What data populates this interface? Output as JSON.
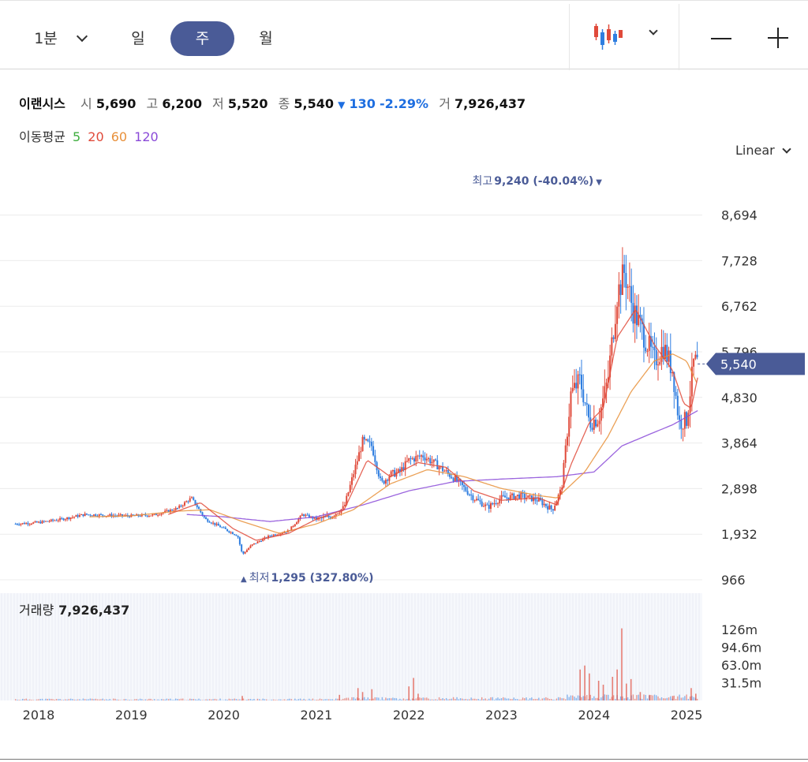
{
  "toolbar": {
    "interval_minute": "1분",
    "interval_day": "일",
    "interval_week": "주",
    "interval_month": "월",
    "active_interval": "주",
    "chart_type_icon": "candlestick-icon",
    "zoom_out_icon": "minus-icon",
    "zoom_in_icon": "plus-icon"
  },
  "stock": {
    "name": "이랜시스",
    "open_label": "시",
    "open": "5,690",
    "high_label": "고",
    "high": "6,200",
    "low_label": "저",
    "low": "5,520",
    "close_label": "종",
    "close": "5,540",
    "change": "130",
    "change_pct": "-2.29%",
    "volume_label": "거",
    "volume": "7,926,437"
  },
  "moving_average": {
    "label": "이동평균",
    "periods": [
      {
        "value": "5",
        "color": "#3fae3f"
      },
      {
        "value": "20",
        "color": "#e04a3a"
      },
      {
        "value": "60",
        "color": "#e8903a"
      },
      {
        "value": "120",
        "color": "#8a4ad8"
      }
    ]
  },
  "scale_mode": "Linear",
  "colors": {
    "up": "#e04a3a",
    "down": "#2f7ee0",
    "accent": "#4a5b97",
    "ma5": "#3fae3f",
    "ma20": "#e04a3a",
    "ma60": "#e8903a",
    "ma120": "#8a4ad8"
  },
  "chart_data": {
    "type": "candlestick",
    "x_labels": [
      "2018",
      "2019",
      "2020",
      "2021",
      "2022",
      "2023",
      "2024",
      "2025"
    ],
    "y_ticks": [
      "8,694",
      "7,728",
      "6,762",
      "5,796",
      "4,830",
      "3,864",
      "2,898",
      "1,932",
      "966"
    ],
    "ylim": [
      966,
      9240
    ],
    "current_price": "5,540",
    "high_annotation": {
      "label": "최고",
      "value": "9,240",
      "pct": "(-40.04%)"
    },
    "low_annotation": {
      "label": "최저",
      "value": "1,295",
      "pct": "(327.80%)"
    },
    "price_keypoints": [
      [
        2017.75,
        2150
      ],
      [
        2018.0,
        2180
      ],
      [
        2018.25,
        2250
      ],
      [
        2018.5,
        2350
      ],
      [
        2018.75,
        2330
      ],
      [
        2019.0,
        2320
      ],
      [
        2019.25,
        2340
      ],
      [
        2019.5,
        2480
      ],
      [
        2019.65,
        2700
      ],
      [
        2019.8,
        2250
      ],
      [
        2020.0,
        2050
      ],
      [
        2020.15,
        1900
      ],
      [
        2020.2,
        1500
      ],
      [
        2020.3,
        1700
      ],
      [
        2020.5,
        1900
      ],
      [
        2020.7,
        2000
      ],
      [
        2020.85,
        2350
      ],
      [
        2021.0,
        2250
      ],
      [
        2021.15,
        2300
      ],
      [
        2021.3,
        2500
      ],
      [
        2021.4,
        3200
      ],
      [
        2021.5,
        3900
      ],
      [
        2021.6,
        3800
      ],
      [
        2021.7,
        3000
      ],
      [
        2021.8,
        3200
      ],
      [
        2021.9,
        3250
      ],
      [
        2022.0,
        3500
      ],
      [
        2022.15,
        3600
      ],
      [
        2022.3,
        3400
      ],
      [
        2022.5,
        3100
      ],
      [
        2022.7,
        2700
      ],
      [
        2022.85,
        2500
      ],
      [
        2023.0,
        2700
      ],
      [
        2023.2,
        2750
      ],
      [
        2023.4,
        2650
      ],
      [
        2023.55,
        2450
      ],
      [
        2023.65,
        2900
      ],
      [
        2023.75,
        4900
      ],
      [
        2023.85,
        5200
      ],
      [
        2023.95,
        4300
      ],
      [
        2024.05,
        4400
      ],
      [
        2024.15,
        5200
      ],
      [
        2024.25,
        7000
      ],
      [
        2024.33,
        7500
      ],
      [
        2024.42,
        6700
      ],
      [
        2024.55,
        6100
      ],
      [
        2024.65,
        5600
      ],
      [
        2024.75,
        5900
      ],
      [
        2024.85,
        5400
      ],
      [
        2024.92,
        4300
      ],
      [
        2025.0,
        4350
      ],
      [
        2025.08,
        5600
      ],
      [
        2025.12,
        5540
      ]
    ],
    "ma20_keypoints": [
      [
        2019.4,
        2350
      ],
      [
        2019.75,
        2600
      ],
      [
        2020.1,
        2050
      ],
      [
        2020.35,
        1800
      ],
      [
        2020.7,
        1950
      ],
      [
        2021.0,
        2250
      ],
      [
        2021.3,
        2450
      ],
      [
        2021.55,
        3500
      ],
      [
        2021.8,
        3150
      ],
      [
        2022.1,
        3450
      ],
      [
        2022.4,
        3350
      ],
      [
        2022.7,
        2850
      ],
      [
        2023.0,
        2650
      ],
      [
        2023.4,
        2700
      ],
      [
        2023.6,
        2550
      ],
      [
        2023.75,
        3400
      ],
      [
        2023.95,
        4300
      ],
      [
        2024.1,
        4600
      ],
      [
        2024.25,
        6100
      ],
      [
        2024.45,
        6700
      ],
      [
        2024.65,
        5950
      ],
      [
        2024.85,
        5400
      ],
      [
        2024.97,
        4700
      ],
      [
        2025.05,
        4600
      ],
      [
        2025.12,
        5250
      ]
    ],
    "ma60_keypoints": [
      [
        2018.55,
        2300
      ],
      [
        2019.0,
        2320
      ],
      [
        2019.5,
        2420
      ],
      [
        2019.85,
        2450
      ],
      [
        2020.2,
        2200
      ],
      [
        2020.6,
        1950
      ],
      [
        2021.0,
        2150
      ],
      [
        2021.4,
        2450
      ],
      [
        2021.8,
        3000
      ],
      [
        2022.2,
        3300
      ],
      [
        2022.6,
        3150
      ],
      [
        2023.0,
        2900
      ],
      [
        2023.4,
        2750
      ],
      [
        2023.6,
        2700
      ],
      [
        2023.9,
        3250
      ],
      [
        2024.15,
        4000
      ],
      [
        2024.4,
        4950
      ],
      [
        2024.65,
        5600
      ],
      [
        2024.85,
        5750
      ],
      [
        2025.0,
        5600
      ],
      [
        2025.12,
        5100
      ]
    ],
    "ma120_keypoints": [
      [
        2019.6,
        2350
      ],
      [
        2020.0,
        2300
      ],
      [
        2020.5,
        2200
      ],
      [
        2021.0,
        2300
      ],
      [
        2021.5,
        2550
      ],
      [
        2022.0,
        2850
      ],
      [
        2022.5,
        3050
      ],
      [
        2023.0,
        3100
      ],
      [
        2023.6,
        3150
      ],
      [
        2024.0,
        3250
      ],
      [
        2024.3,
        3800
      ],
      [
        2024.6,
        4050
      ],
      [
        2024.85,
        4250
      ],
      [
        2025.12,
        4550
      ]
    ],
    "volume": {
      "label": "거래량",
      "value": "7,926,437",
      "y_ticks": [
        "126m",
        "94.6m",
        "63.0m",
        "31.5m"
      ],
      "ylim": [
        0,
        140
      ],
      "spikes": [
        [
          2020.2,
          8
        ],
        [
          2021.25,
          10
        ],
        [
          2021.45,
          22
        ],
        [
          2021.5,
          15
        ],
        [
          2021.6,
          20
        ],
        [
          2022.0,
          25
        ],
        [
          2022.05,
          40
        ],
        [
          2022.1,
          12
        ],
        [
          2023.85,
          55
        ],
        [
          2023.9,
          62
        ],
        [
          2023.95,
          48
        ],
        [
          2024.05,
          35
        ],
        [
          2024.1,
          28
        ],
        [
          2024.2,
          42
        ],
        [
          2024.25,
          55
        ],
        [
          2024.3,
          128
        ],
        [
          2024.35,
          30
        ],
        [
          2024.4,
          38
        ],
        [
          2024.5,
          15
        ],
        [
          2024.6,
          10
        ],
        [
          2024.85,
          8
        ],
        [
          2025.05,
          22
        ],
        [
          2025.1,
          12
        ]
      ]
    }
  }
}
